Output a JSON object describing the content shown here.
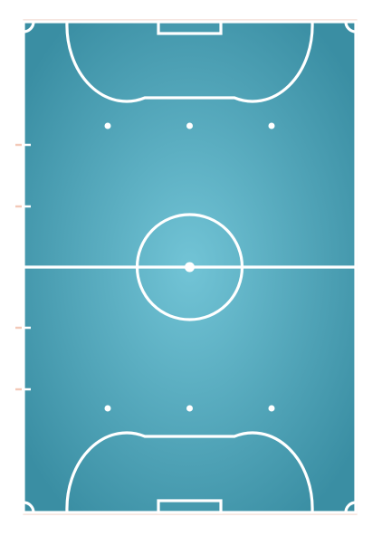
{
  "court": {
    "sport": "futsal",
    "orientation": "vertical",
    "colors": {
      "surface_center": "#72c4d6",
      "surface_edge": "#3a8ea3",
      "lines": "#ffffff",
      "outer_border": "#f0d6cc",
      "substitution_marks": "#ffffff",
      "substitution_mark_tint": "#f3c9b8"
    },
    "markings": {
      "halfway_line": true,
      "center_circle": true,
      "center_spot": true,
      "penalty_areas": 2,
      "goals": 2,
      "corner_arcs": 4,
      "penalty_spots_per_half": 3,
      "substitution_zone_marks": 4
    }
  }
}
